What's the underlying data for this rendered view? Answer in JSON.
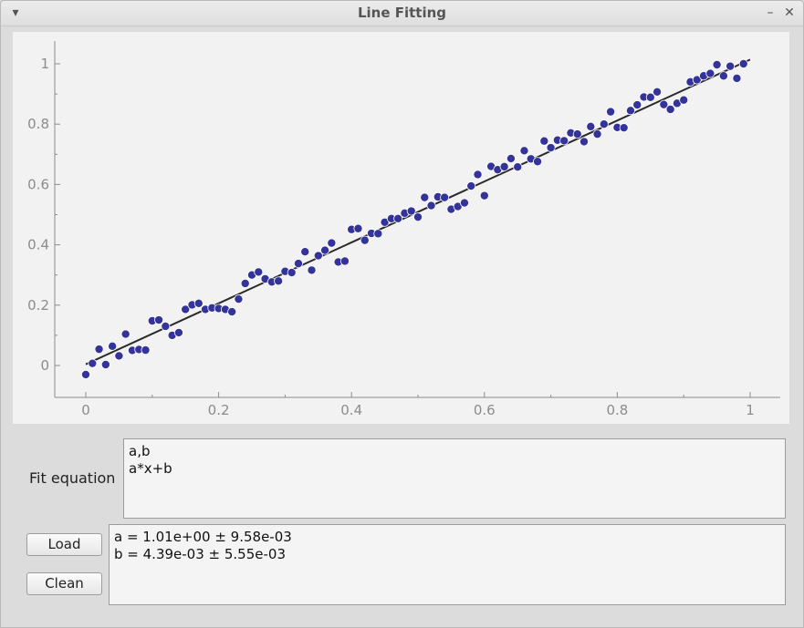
{
  "window": {
    "title": "Line Fitting",
    "menu_icon": "triangle-down-icon",
    "minimize_icon": "minimize-icon",
    "close_icon": "close-icon"
  },
  "fit_panel": {
    "label": "Fit equation",
    "equation_text": "a,b\na*x+b"
  },
  "buttons": {
    "load_label": "Load",
    "clean_label": "Clean"
  },
  "results": {
    "text": "a = 1.01e+00 ± 9.58e-03\nb = 4.39e-03 ± 5.55e-03"
  },
  "colors": {
    "point": "#333399",
    "line": "#2a2a2a",
    "axis": "#8c8c8c",
    "tick_text": "#8c8c8c",
    "plot_bg": "#f2f2f2"
  },
  "chart_data": {
    "type": "scatter",
    "xlim": [
      0,
      1
    ],
    "ylim": [
      -0.05,
      1.05
    ],
    "x_ticks": [
      "0",
      "0.2",
      "0.4",
      "0.6",
      "0.8",
      "1"
    ],
    "y_ticks": [
      "0",
      "0.2",
      "0.4",
      "0.6",
      "0.8",
      "1"
    ],
    "x_tick_values": [
      0,
      0.2,
      0.4,
      0.6,
      0.8,
      1
    ],
    "y_tick_values": [
      0,
      0.2,
      0.4,
      0.6,
      0.8,
      1
    ],
    "grid": false,
    "fit_line": {
      "x": [
        0,
        1
      ],
      "y": [
        0.004,
        1.014
      ]
    },
    "series": [
      {
        "name": "",
        "points": [
          [
            0.0,
            -0.03
          ],
          [
            0.01,
            0.007
          ],
          [
            0.02,
            0.054
          ],
          [
            0.03,
            0.003
          ],
          [
            0.04,
            0.064
          ],
          [
            0.05,
            0.032
          ],
          [
            0.06,
            0.104
          ],
          [
            0.07,
            0.05
          ],
          [
            0.08,
            0.053
          ],
          [
            0.09,
            0.051
          ],
          [
            0.1,
            0.148
          ],
          [
            0.11,
            0.151
          ],
          [
            0.12,
            0.13
          ],
          [
            0.13,
            0.1
          ],
          [
            0.14,
            0.109
          ],
          [
            0.15,
            0.186
          ],
          [
            0.16,
            0.201
          ],
          [
            0.17,
            0.206
          ],
          [
            0.18,
            0.186
          ],
          [
            0.19,
            0.191
          ],
          [
            0.2,
            0.189
          ],
          [
            0.21,
            0.186
          ],
          [
            0.22,
            0.178
          ],
          [
            0.23,
            0.22
          ],
          [
            0.24,
            0.272
          ],
          [
            0.25,
            0.3
          ],
          [
            0.26,
            0.31
          ],
          [
            0.27,
            0.287
          ],
          [
            0.28,
            0.277
          ],
          [
            0.29,
            0.28
          ],
          [
            0.3,
            0.312
          ],
          [
            0.31,
            0.308
          ],
          [
            0.32,
            0.338
          ],
          [
            0.33,
            0.377
          ],
          [
            0.34,
            0.316
          ],
          [
            0.35,
            0.364
          ],
          [
            0.36,
            0.382
          ],
          [
            0.37,
            0.406
          ],
          [
            0.38,
            0.343
          ],
          [
            0.39,
            0.346
          ],
          [
            0.4,
            0.451
          ],
          [
            0.41,
            0.454
          ],
          [
            0.42,
            0.415
          ],
          [
            0.43,
            0.438
          ],
          [
            0.44,
            0.437
          ],
          [
            0.45,
            0.475
          ],
          [
            0.46,
            0.487
          ],
          [
            0.47,
            0.487
          ],
          [
            0.48,
            0.505
          ],
          [
            0.49,
            0.512
          ],
          [
            0.5,
            0.492
          ],
          [
            0.51,
            0.557
          ],
          [
            0.52,
            0.53
          ],
          [
            0.53,
            0.559
          ],
          [
            0.54,
            0.557
          ],
          [
            0.55,
            0.518
          ],
          [
            0.56,
            0.527
          ],
          [
            0.57,
            0.539
          ],
          [
            0.58,
            0.595
          ],
          [
            0.59,
            0.633
          ],
          [
            0.6,
            0.563
          ],
          [
            0.61,
            0.66
          ],
          [
            0.62,
            0.649
          ],
          [
            0.63,
            0.659
          ],
          [
            0.64,
            0.686
          ],
          [
            0.65,
            0.658
          ],
          [
            0.66,
            0.712
          ],
          [
            0.67,
            0.685
          ],
          [
            0.68,
            0.676
          ],
          [
            0.69,
            0.744
          ],
          [
            0.7,
            0.722
          ],
          [
            0.71,
            0.747
          ],
          [
            0.72,
            0.745
          ],
          [
            0.73,
            0.771
          ],
          [
            0.74,
            0.767
          ],
          [
            0.75,
            0.742
          ],
          [
            0.76,
            0.792
          ],
          [
            0.77,
            0.767
          ],
          [
            0.78,
            0.8
          ],
          [
            0.79,
            0.841
          ],
          [
            0.8,
            0.789
          ],
          [
            0.81,
            0.788
          ],
          [
            0.82,
            0.845
          ],
          [
            0.83,
            0.864
          ],
          [
            0.84,
            0.89
          ],
          [
            0.85,
            0.889
          ],
          [
            0.86,
            0.907
          ],
          [
            0.87,
            0.865
          ],
          [
            0.88,
            0.849
          ],
          [
            0.89,
            0.869
          ],
          [
            0.9,
            0.88
          ],
          [
            0.91,
            0.94
          ],
          [
            0.92,
            0.947
          ],
          [
            0.93,
            0.96
          ],
          [
            0.94,
            0.968
          ],
          [
            0.95,
            0.997
          ],
          [
            0.96,
            0.96
          ],
          [
            0.97,
            0.992
          ],
          [
            0.98,
            0.952
          ],
          [
            0.99,
            1.0
          ]
        ]
      }
    ]
  }
}
